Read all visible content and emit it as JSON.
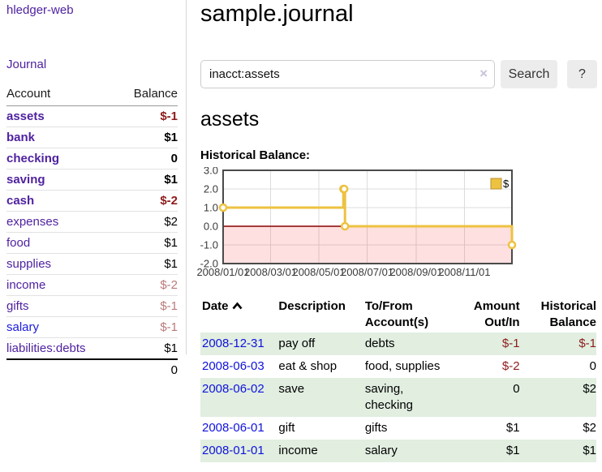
{
  "sidebar": {
    "app_title": "hledger-web",
    "journal_label": "Journal",
    "account_header": "Account",
    "balance_header": "Balance",
    "accounts": [
      {
        "name": "assets",
        "balance": "$-1",
        "level": 1,
        "bold": true,
        "balance_style": "negative-strong"
      },
      {
        "name": "bank",
        "balance": "$1",
        "level": 2,
        "bold": true,
        "balance_style": "normal"
      },
      {
        "name": "checking",
        "balance": "0",
        "level": 3,
        "bold": true,
        "balance_style": "normal"
      },
      {
        "name": "saving",
        "balance": "$1",
        "level": 3,
        "bold": true,
        "balance_style": "normal"
      },
      {
        "name": "cash",
        "balance": "$-2",
        "level": 2,
        "bold": true,
        "balance_style": "negative-strong"
      },
      {
        "name": "expenses",
        "balance": "$2",
        "level": 1,
        "bold": false,
        "balance_style": "normal"
      },
      {
        "name": "food",
        "balance": "$1",
        "level": 2,
        "bold": false,
        "balance_style": "normal"
      },
      {
        "name": "supplies",
        "balance": "$1",
        "level": 2,
        "bold": false,
        "balance_style": "normal"
      },
      {
        "name": "income",
        "balance": "$-2",
        "level": 1,
        "bold": false,
        "balance_style": "negative-faded"
      },
      {
        "name": "gifts",
        "balance": "$-1",
        "level": 2,
        "bold": false,
        "balance_style": "negative-faded"
      },
      {
        "name": "salary",
        "balance": "$-1",
        "level": 2,
        "bold": false,
        "balance_style": "negative-faded",
        "link_style": "blue"
      },
      {
        "name": "liabilities:debts",
        "balance": "$1",
        "level": 1,
        "bold": false,
        "balance_style": "normal"
      }
    ],
    "total": "0"
  },
  "main": {
    "title": "sample.journal",
    "account_heading": "assets",
    "chart_label": "Historical Balance:"
  },
  "search": {
    "value": "inacct:assets",
    "clear_icon": "×",
    "search_label": "Search",
    "help_label": "?"
  },
  "chart_data": {
    "type": "line",
    "step": true,
    "title": "Historical Balance:",
    "series": [
      {
        "name": "$",
        "color": "#edc240",
        "points": [
          [
            "2008-01-01",
            1
          ],
          [
            "2008-06-01",
            2
          ],
          [
            "2008-06-02",
            2
          ],
          [
            "2008-06-03",
            0
          ],
          [
            "2008-12-31",
            -1
          ]
        ]
      }
    ],
    "xlim": [
      "2008-01-01",
      "2008-12-31"
    ],
    "ylim": [
      -2,
      3
    ],
    "yticks": [
      3,
      2,
      1,
      0,
      -1,
      -2
    ],
    "ytick_labels": [
      "3.0",
      "2.0",
      "1.0",
      "0.0",
      "-1.0",
      "-2.0"
    ],
    "xticks": [
      "2008-01-01",
      "2008-03-01",
      "2008-05-01",
      "2008-07-01",
      "2008-09-01",
      "2008-11-01"
    ],
    "xtick_labels": [
      "2008/01/01",
      "2008/03/01",
      "2008/05/01",
      "2008/07/01",
      "2008/09/01",
      "2008/11/01"
    ],
    "grid": true,
    "legend": {
      "label": "$",
      "position": "top-right"
    },
    "colors": {
      "negative_region": "rgba(255,0,0,0.12)",
      "zero_line": "#8b0000",
      "gridline": "#dcdcdc",
      "border": "#4a4a4a",
      "marker_fill": "#ffffff",
      "legend_swatch_border": "#b89130",
      "tick_text": "#3a3a3a"
    }
  },
  "register": {
    "columns": {
      "date": "Date",
      "description": "Description",
      "accounts": "To/From Account(s)",
      "amount": "Amount Out/In",
      "balance": "Historical Balance"
    },
    "rows": [
      {
        "date": "2008-12-31",
        "description": "pay off",
        "accounts": "debts",
        "amount": "$-1",
        "balance": "$-1"
      },
      {
        "date": "2008-06-03",
        "description": "eat & shop",
        "accounts": "food, supplies",
        "amount": "$-2",
        "balance": "0"
      },
      {
        "date": "2008-06-02",
        "description": "save",
        "accounts": "saving, checking",
        "amount": "0",
        "balance": "$2"
      },
      {
        "date": "2008-06-01",
        "description": "gift",
        "accounts": "gifts",
        "amount": "$1",
        "balance": "$2"
      },
      {
        "date": "2008-01-01",
        "description": "income",
        "accounts": "salary",
        "amount": "$1",
        "balance": "$1"
      }
    ]
  },
  "colors": {
    "link_purple": "#4f22a0",
    "link_blue": "#0f12dd",
    "negative_strong": "#8e1b1b",
    "negative_faded": "#bb7a7a",
    "row_stripe_green": "#e1eee0",
    "chart_line_gold": "#edc240"
  }
}
